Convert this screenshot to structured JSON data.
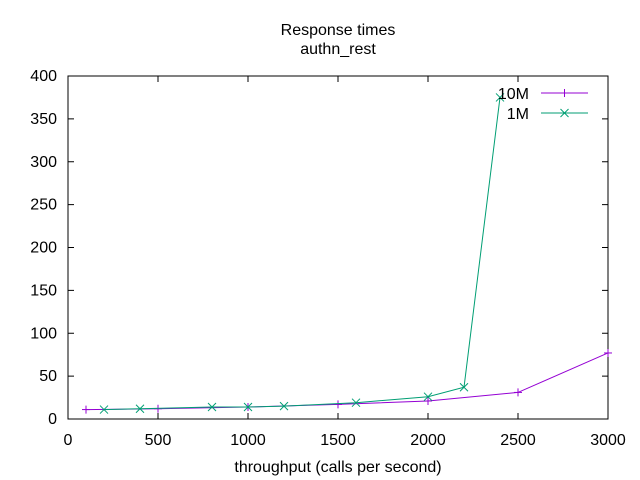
{
  "chart_data": {
    "type": "line",
    "title": "Response times",
    "subtitle": "authn_rest",
    "xlabel": "throughput (calls per second)",
    "ylabel": "",
    "xlim": [
      0,
      3000
    ],
    "ylim": [
      0,
      400
    ],
    "xticks": [
      0,
      500,
      1000,
      1500,
      2000,
      2500,
      3000
    ],
    "yticks": [
      0,
      50,
      100,
      150,
      200,
      250,
      300,
      350,
      400
    ],
    "grid": false,
    "legend_position": "top-right",
    "series": [
      {
        "name": "10M",
        "color": "#9400d3",
        "marker": "plus",
        "x": [
          100,
          500,
          1000,
          1500,
          2000,
          2500,
          3000
        ],
        "y": [
          11,
          12,
          14,
          17,
          21,
          31,
          77
        ]
      },
      {
        "name": "1M",
        "color": "#009e73",
        "marker": "cross",
        "x": [
          200,
          400,
          800,
          1000,
          1200,
          1600,
          2000,
          2200,
          2400
        ],
        "y": [
          11,
          12,
          14,
          14,
          15,
          19,
          26,
          37,
          375
        ]
      }
    ]
  }
}
